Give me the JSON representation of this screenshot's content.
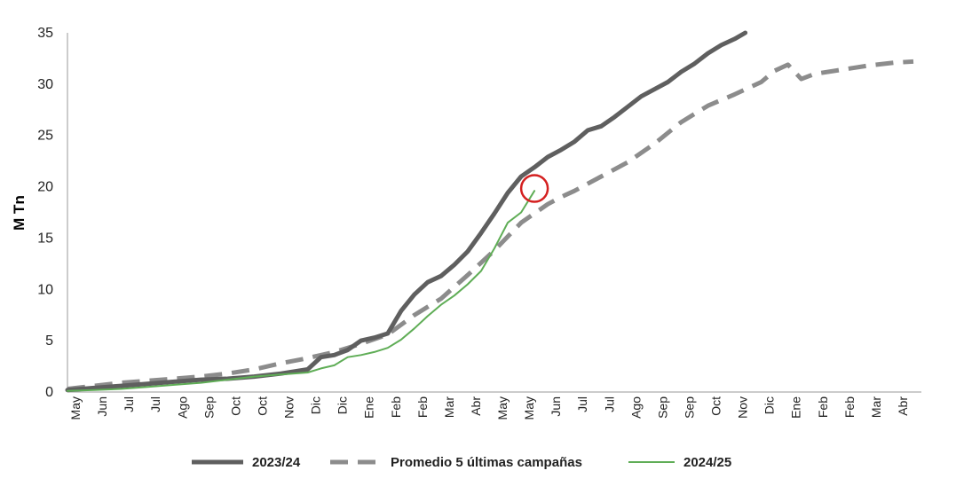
{
  "chart_data": {
    "type": "line",
    "title": "",
    "xlabel": "",
    "ylabel": "M Tn",
    "ylim": [
      0,
      35
    ],
    "yticks": [
      0,
      5,
      10,
      15,
      20,
      25,
      30,
      35
    ],
    "grid": false,
    "legend_position": "bottom",
    "x_tick_labels": [
      "May",
      "Jun",
      "Jul",
      "Jul",
      "Ago",
      "Sep",
      "Oct",
      "Oct",
      "Nov",
      "Dic",
      "Dic",
      "Ene",
      "Feb",
      "Feb",
      "Mar",
      "Abr",
      "May",
      "May",
      "Jun",
      "Jul",
      "Jul",
      "Ago",
      "Sep",
      "Sep",
      "Oct",
      "Nov",
      "Dic",
      "Ene",
      "Feb",
      "Feb",
      "Mar",
      "Abr"
    ],
    "x_range": [
      0,
      32
    ],
    "series": [
      {
        "name": "2023/24",
        "color": "#5f5f5f",
        "style": "solid-thick",
        "points": [
          [
            0,
            0.2
          ],
          [
            1,
            0.4
          ],
          [
            2,
            0.6
          ],
          [
            3,
            0.8
          ],
          [
            4,
            1.0
          ],
          [
            5,
            1.2
          ],
          [
            6,
            1.3
          ],
          [
            7,
            1.5
          ],
          [
            8,
            1.8
          ],
          [
            9,
            2.2
          ],
          [
            9.5,
            3.4
          ],
          [
            10,
            3.6
          ],
          [
            10.5,
            4.1
          ],
          [
            11,
            5.0
          ],
          [
            11.5,
            5.3
          ],
          [
            12,
            5.7
          ],
          [
            12.5,
            7.9
          ],
          [
            13,
            9.5
          ],
          [
            13.5,
            10.7
          ],
          [
            14,
            11.3
          ],
          [
            14.5,
            12.4
          ],
          [
            15,
            13.7
          ],
          [
            15.5,
            15.5
          ],
          [
            16,
            17.4
          ],
          [
            16.5,
            19.4
          ],
          [
            17,
            21.0
          ],
          [
            17.5,
            21.9
          ],
          [
            18,
            22.9
          ],
          [
            18.5,
            23.6
          ],
          [
            19,
            24.4
          ],
          [
            19.5,
            25.5
          ],
          [
            20,
            25.9
          ],
          [
            20.5,
            26.8
          ],
          [
            21,
            27.8
          ],
          [
            21.5,
            28.8
          ],
          [
            22,
            29.5
          ],
          [
            22.5,
            30.2
          ],
          [
            23,
            31.2
          ],
          [
            23.5,
            32.0
          ],
          [
            24,
            33.0
          ],
          [
            24.5,
            33.8
          ],
          [
            25,
            34.4
          ],
          [
            25.4,
            35.0
          ]
        ]
      },
      {
        "name": "Promedio 5 últimas campañas",
        "color": "#8c8c8c",
        "style": "dashed-thick",
        "points": [
          [
            0,
            0.3
          ],
          [
            1,
            0.6
          ],
          [
            2,
            0.9
          ],
          [
            3,
            1.1
          ],
          [
            4,
            1.3
          ],
          [
            5,
            1.5
          ],
          [
            6,
            1.8
          ],
          [
            7,
            2.2
          ],
          [
            8,
            2.8
          ],
          [
            9,
            3.3
          ],
          [
            10,
            3.9
          ],
          [
            11,
            4.7
          ],
          [
            12,
            5.6
          ],
          [
            13,
            7.5
          ],
          [
            14,
            9.1
          ],
          [
            15,
            11.4
          ],
          [
            16,
            13.8
          ],
          [
            17,
            16.5
          ],
          [
            18,
            18.3
          ],
          [
            18.5,
            19.0
          ],
          [
            19,
            19.6
          ],
          [
            20,
            21.0
          ],
          [
            21,
            22.4
          ],
          [
            22,
            24.2
          ],
          [
            23,
            26.3
          ],
          [
            24,
            27.9
          ],
          [
            25,
            29.0
          ],
          [
            26,
            30.2
          ],
          [
            26.5,
            31.3
          ],
          [
            27,
            31.9
          ],
          [
            27.5,
            30.5
          ],
          [
            28,
            31.0
          ],
          [
            29,
            31.4
          ],
          [
            30,
            31.8
          ],
          [
            31,
            32.1
          ],
          [
            31.7,
            32.2
          ]
        ]
      },
      {
        "name": "2024/25",
        "color": "#5fad56",
        "style": "solid-thin",
        "points": [
          [
            0,
            0.1
          ],
          [
            1,
            0.2
          ],
          [
            2,
            0.3
          ],
          [
            3,
            0.5
          ],
          [
            4,
            0.7
          ],
          [
            5,
            0.9
          ],
          [
            6,
            1.2
          ],
          [
            7,
            1.5
          ],
          [
            8,
            1.7
          ],
          [
            9,
            1.9
          ],
          [
            9.5,
            2.3
          ],
          [
            10,
            2.6
          ],
          [
            10.5,
            3.4
          ],
          [
            11,
            3.6
          ],
          [
            11.5,
            3.9
          ],
          [
            12,
            4.3
          ],
          [
            12.5,
            5.1
          ],
          [
            13,
            6.2
          ],
          [
            13.5,
            7.4
          ],
          [
            14,
            8.5
          ],
          [
            14.5,
            9.4
          ],
          [
            15,
            10.5
          ],
          [
            15.5,
            11.8
          ],
          [
            16,
            14.0
          ],
          [
            16.5,
            16.5
          ],
          [
            17,
            17.5
          ],
          [
            17.5,
            19.6
          ]
        ]
      }
    ],
    "annotation": {
      "type": "circle",
      "x": 17.5,
      "y": 19.4,
      "color": "#d42020"
    }
  }
}
